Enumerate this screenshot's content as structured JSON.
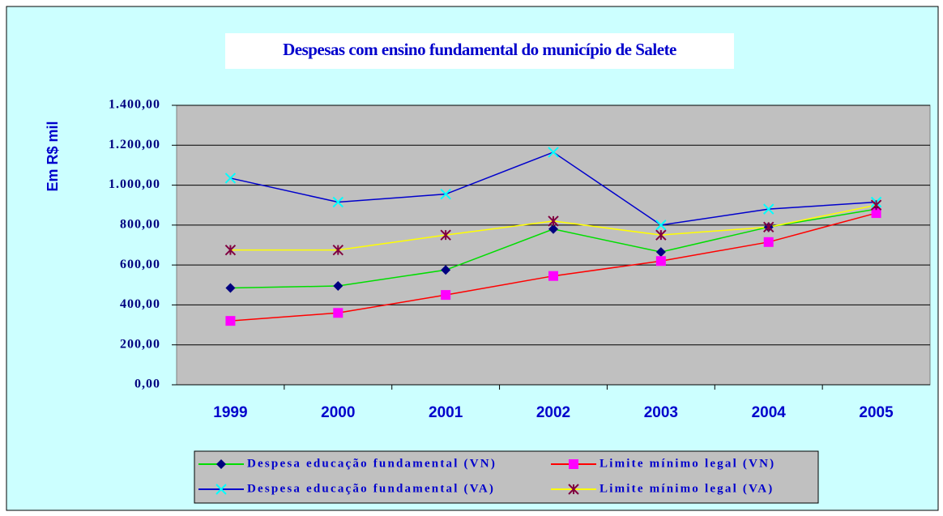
{
  "chart_data": {
    "type": "line",
    "title": "Despesas com ensino fundamental do município de Salete",
    "y_label": "Em R$ mil",
    "categories": [
      "1999",
      "2000",
      "2001",
      "2002",
      "2003",
      "2004",
      "2005"
    ],
    "series": [
      {
        "name": "Despesa educação fundamental (VN)",
        "color": "#00dd00",
        "marker": "diamond",
        "marker_color": "#000080",
        "values": [
          485,
          495,
          575,
          780,
          665,
          790,
          880
        ]
      },
      {
        "name": "Limite mínimo legal (VN)",
        "color": "#ff0000",
        "marker": "square",
        "marker_color": "#ff00ff",
        "values": [
          320,
          360,
          450,
          545,
          620,
          715,
          860
        ]
      },
      {
        "name": "Despesa educação fundamental (VA)",
        "color": "#0000cc",
        "marker": "x",
        "marker_color": "#00ffff",
        "values": [
          1035,
          915,
          955,
          1165,
          800,
          880,
          915
        ]
      },
      {
        "name": "Limite mínimo legal (VA)",
        "color": "#ffff00",
        "marker": "asterisk",
        "marker_color": "#800040",
        "values": [
          675,
          675,
          750,
          820,
          750,
          790,
          900
        ]
      }
    ],
    "ylim": [
      0,
      1400
    ],
    "yticks": [
      {
        "value": 0,
        "label": "0,00"
      },
      {
        "value": 200,
        "label": "200,00"
      },
      {
        "value": 400,
        "label": "400,00"
      },
      {
        "value": 600,
        "label": "600,00"
      },
      {
        "value": 800,
        "label": "800,00"
      },
      {
        "value": 1000,
        "label": "1.000,00"
      },
      {
        "value": 1200,
        "label": "1.200,00"
      },
      {
        "value": 1400,
        "label": "1.400,00"
      }
    ],
    "grid": true
  }
}
